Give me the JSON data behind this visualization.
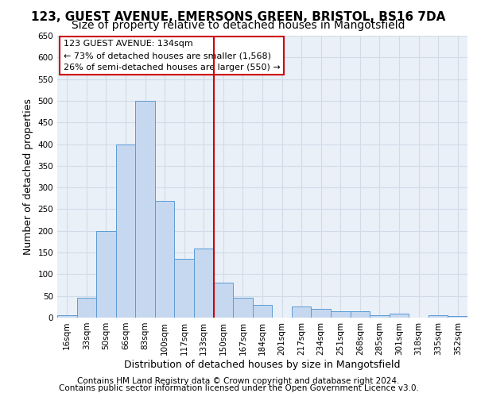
{
  "title_line1": "123, GUEST AVENUE, EMERSONS GREEN, BRISTOL, BS16 7DA",
  "title_line2": "Size of property relative to detached houses in Mangotsfield",
  "xlabel": "Distribution of detached houses by size in Mangotsfield",
  "ylabel": "Number of detached properties",
  "footer_line1": "Contains HM Land Registry data © Crown copyright and database right 2024.",
  "footer_line2": "Contains public sector information licensed under the Open Government Licence v3.0.",
  "annotation_line1": "123 GUEST AVENUE: 134sqm",
  "annotation_line2": "← 73% of detached houses are smaller (1,568)",
  "annotation_line3": "26% of semi-detached houses are larger (550) →",
  "categories": [
    "16sqm",
    "33sqm",
    "50sqm",
    "66sqm",
    "83sqm",
    "100sqm",
    "117sqm",
    "133sqm",
    "150sqm",
    "167sqm",
    "184sqm",
    "201sqm",
    "217sqm",
    "234sqm",
    "251sqm",
    "268sqm",
    "285sqm",
    "301sqm",
    "318sqm",
    "335sqm",
    "352sqm"
  ],
  "values": [
    5,
    45,
    200,
    400,
    500,
    270,
    135,
    160,
    80,
    45,
    30,
    0,
    25,
    20,
    15,
    15,
    5,
    10,
    0,
    5,
    3
  ],
  "bar_color": "#c5d8f0",
  "bar_edge_color": "#5b9bd5",
  "vline_color": "#cc0000",
  "vline_pos": 7.5,
  "ylim": [
    0,
    650
  ],
  "yticks": [
    0,
    50,
    100,
    150,
    200,
    250,
    300,
    350,
    400,
    450,
    500,
    550,
    600,
    650
  ],
  "grid_color": "#d0dce8",
  "bg_color": "#eaf0f8",
  "title_fontsize": 11,
  "subtitle_fontsize": 10,
  "tick_fontsize": 7.5,
  "label_fontsize": 9,
  "footer_fontsize": 7.5,
  "ann_fontsize": 8.0
}
